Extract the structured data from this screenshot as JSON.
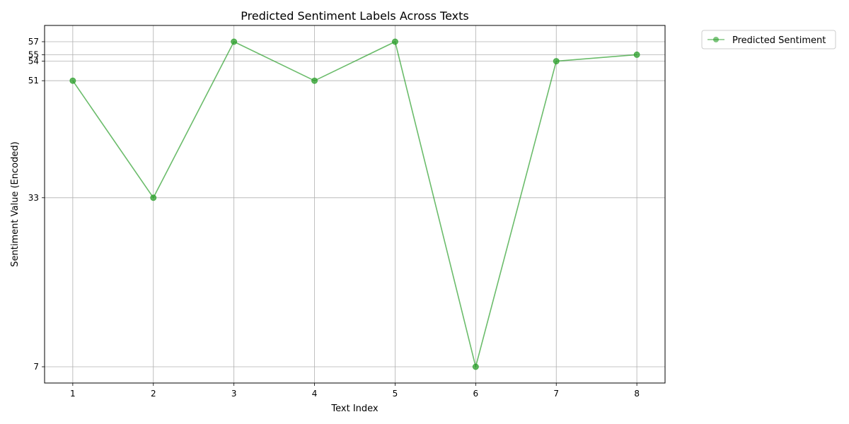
{
  "chart_data": {
    "type": "line",
    "title": "Predicted Sentiment Labels Across Texts",
    "xlabel": "Text Index",
    "ylabel": "Sentiment Value (Encoded)",
    "x": [
      1,
      2,
      3,
      4,
      5,
      6,
      7,
      8
    ],
    "series": [
      {
        "name": "Predicted Sentiment",
        "values": [
          51,
          33,
          57,
          51,
          57,
          7,
          54,
          55
        ],
        "color": "#2ca02c",
        "marker": "circle"
      }
    ],
    "xticks": [
      1,
      2,
      3,
      4,
      5,
      6,
      7,
      8
    ],
    "yticks": [
      7,
      33,
      51,
      54,
      55,
      57
    ],
    "xlim": [
      0.65,
      8.35
    ],
    "ylim": [
      4.5,
      59.5
    ],
    "grid": true,
    "legend": "outside-top-right"
  }
}
